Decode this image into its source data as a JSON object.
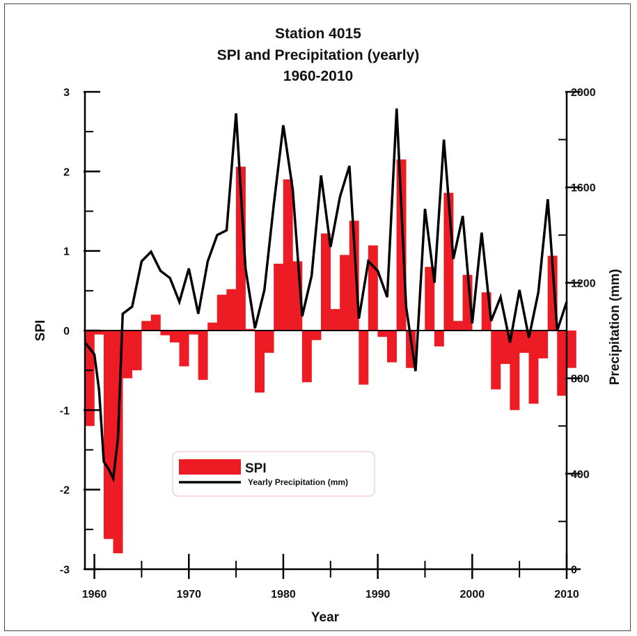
{
  "chart_data": {
    "type": "bar",
    "title": [
      "Station 4015",
      "SPI and Precipitation (yearly)",
      "1960-2010"
    ],
    "xlabel": "Year",
    "ylabel_left": "SPI",
    "ylabel_right": "Precipitation (mm)",
    "xlim": [
      1959,
      2010
    ],
    "ylim_left": [
      -3,
      3
    ],
    "ylim_right": [
      0,
      2000
    ],
    "x_ticks": [
      "1960",
      "1970",
      "1980",
      "1990",
      "2000",
      "2010"
    ],
    "y_left_ticks": [
      "3",
      "2",
      "1",
      "0",
      "-1",
      "-2",
      "-3"
    ],
    "y_right_ticks": [
      "2000",
      "1600",
      "1200",
      "800",
      "400",
      "0"
    ],
    "legend_position": "lower-center",
    "series": [
      {
        "name": "SPI",
        "type": "bar",
        "color": "#ed1c24",
        "x": [
          1959,
          1960,
          1961,
          1962,
          1963,
          1964,
          1965,
          1966,
          1967,
          1968,
          1969,
          1970,
          1971,
          1972,
          1973,
          1974,
          1975,
          1976,
          1977,
          1978,
          1979,
          1980,
          1981,
          1982,
          1983,
          1984,
          1985,
          1986,
          1987,
          1988,
          1989,
          1990,
          1991,
          1992,
          1993,
          1994,
          1995,
          1996,
          1997,
          1998,
          1999,
          2000,
          2001,
          2002,
          2003,
          2004,
          2005,
          2006,
          2007,
          2008,
          2009,
          2010
        ],
        "values": [
          -1.2,
          -0.05,
          -2.62,
          -2.8,
          -0.6,
          -0.5,
          0.12,
          0.2,
          -0.06,
          -0.15,
          -0.45,
          -0.05,
          -0.62,
          0.1,
          0.45,
          0.52,
          2.06,
          0.02,
          -0.78,
          -0.28,
          0.84,
          1.9,
          0.87,
          -0.65,
          -0.12,
          1.22,
          0.27,
          0.95,
          1.38,
          -0.68,
          1.07,
          -0.08,
          -0.4,
          2.15,
          -0.47,
          0.0,
          0.8,
          -0.2,
          1.73,
          0.12,
          0.7,
          0.0,
          0.48,
          -0.74,
          -0.42,
          -1.0,
          -0.28,
          -0.92,
          -0.35,
          0.94,
          -0.82,
          -0.47
        ]
      },
      {
        "name": "Yearly Precipitation (mm)",
        "type": "line",
        "color": "#000000",
        "x": [
          1959,
          1960,
          1960.5,
          1961,
          1961.5,
          1962,
          1962.5,
          1963,
          1964,
          1965,
          1966,
          1967,
          1968,
          1969,
          1970,
          1971,
          1972,
          1973,
          1974,
          1975,
          1976,
          1977,
          1978,
          1979,
          1980,
          1981,
          1982,
          1983,
          1984,
          1985,
          1986,
          1987,
          1988,
          1989,
          1990,
          1991,
          1992,
          1993,
          1994,
          1995,
          1996,
          1997,
          1998,
          1999,
          2000,
          2001,
          2002,
          2003,
          2004,
          2005,
          2006,
          2007,
          2008,
          2009,
          2010
        ],
        "values": [
          950,
          900,
          750,
          450,
          420,
          380,
          550,
          1070,
          1100,
          1290,
          1330,
          1250,
          1220,
          1120,
          1260,
          1070,
          1290,
          1400,
          1420,
          1910,
          1260,
          1010,
          1170,
          1530,
          1860,
          1590,
          1060,
          1230,
          1650,
          1350,
          1560,
          1690,
          1050,
          1290,
          1250,
          1140,
          1930,
          1100,
          830,
          1510,
          1200,
          1800,
          1300,
          1480,
          1030,
          1410,
          1040,
          1140,
          950,
          1170,
          970,
          1160,
          1550,
          1000,
          1120
        ]
      }
    ]
  }
}
